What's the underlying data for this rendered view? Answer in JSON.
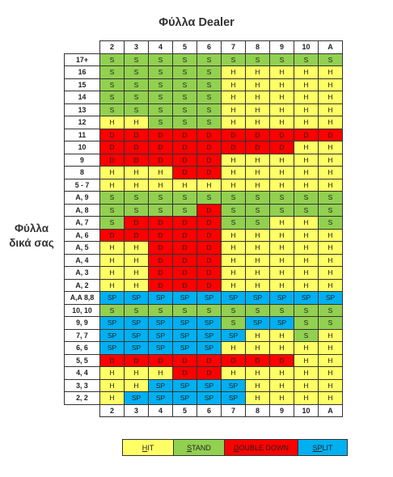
{
  "title": "Φύλλα Dealer",
  "side_label": [
    "Φύλλα",
    "δικά σας"
  ],
  "dealer_cards": [
    "2",
    "3",
    "4",
    "5",
    "6",
    "7",
    "8",
    "9",
    "10",
    "A"
  ],
  "colors": {
    "H": "#ffff66",
    "S": "#92d050",
    "D": "#ff0000",
    "SP": "#00b0f0"
  },
  "rows": [
    {
      "label": "17+",
      "cells": [
        "S",
        "S",
        "S",
        "S",
        "S",
        "S",
        "S",
        "S",
        "S",
        "S"
      ]
    },
    {
      "label": "16",
      "cells": [
        "S",
        "S",
        "S",
        "S",
        "S",
        "H",
        "H",
        "H",
        "H",
        "H"
      ]
    },
    {
      "label": "15",
      "cells": [
        "S",
        "S",
        "S",
        "S",
        "S",
        "H",
        "H",
        "H",
        "H",
        "H"
      ]
    },
    {
      "label": "14",
      "cells": [
        "S",
        "S",
        "S",
        "S",
        "S",
        "H",
        "H",
        "H",
        "H",
        "H"
      ]
    },
    {
      "label": "13",
      "cells": [
        "S",
        "S",
        "S",
        "S",
        "S",
        "H",
        "H",
        "H",
        "H",
        "H"
      ]
    },
    {
      "label": "12",
      "cells": [
        "H",
        "H",
        "S",
        "S",
        "S",
        "H",
        "H",
        "H",
        "H",
        "H"
      ]
    },
    {
      "label": "11",
      "cells": [
        "D",
        "D",
        "D",
        "D",
        "D",
        "D",
        "D",
        "D",
        "D",
        "D"
      ]
    },
    {
      "label": "10",
      "cells": [
        "D",
        "D",
        "D",
        "D",
        "D",
        "D",
        "D",
        "D",
        "H",
        "H"
      ]
    },
    {
      "label": "9",
      "cells": [
        "D",
        "D",
        "D",
        "D",
        "D",
        "H",
        "H",
        "H",
        "H",
        "H"
      ]
    },
    {
      "label": "8",
      "cells": [
        "H",
        "H",
        "H",
        "D",
        "D",
        "H",
        "H",
        "H",
        "H",
        "H"
      ]
    },
    {
      "label": "5 - 7",
      "cells": [
        "H",
        "H",
        "H",
        "H",
        "H",
        "H",
        "H",
        "H",
        "H",
        "H"
      ]
    },
    {
      "label": "A, 9",
      "cells": [
        "S",
        "S",
        "S",
        "S",
        "S",
        "S",
        "S",
        "S",
        "S",
        "S"
      ]
    },
    {
      "label": "A, 8",
      "cells": [
        "S",
        "S",
        "S",
        "S",
        "D",
        "S",
        "S",
        "S",
        "S",
        "S"
      ]
    },
    {
      "label": "A, 7",
      "cells": [
        "S",
        "D",
        "D",
        "D",
        "D",
        "S",
        "S",
        "H",
        "H",
        "S"
      ]
    },
    {
      "label": "A, 6",
      "cells": [
        "D",
        "D",
        "D",
        "D",
        "D",
        "H",
        "H",
        "H",
        "H",
        "H"
      ]
    },
    {
      "label": "A, 5",
      "cells": [
        "H",
        "H",
        "D",
        "D",
        "D",
        "H",
        "H",
        "H",
        "H",
        "H"
      ]
    },
    {
      "label": "A, 4",
      "cells": [
        "H",
        "H",
        "D",
        "D",
        "D",
        "H",
        "H",
        "H",
        "H",
        "H"
      ]
    },
    {
      "label": "A, 3",
      "cells": [
        "H",
        "H",
        "D",
        "D",
        "D",
        "H",
        "H",
        "H",
        "H",
        "H"
      ]
    },
    {
      "label": "A, 2",
      "cells": [
        "H",
        "H",
        "D",
        "D",
        "D",
        "H",
        "H",
        "H",
        "H",
        "H"
      ]
    },
    {
      "label": "A,A 8,8",
      "cells": [
        "SP",
        "SP",
        "SP",
        "SP",
        "SP",
        "SP",
        "SP",
        "SP",
        "SP",
        "SP"
      ]
    },
    {
      "label": "10, 10",
      "cells": [
        "S",
        "S",
        "S",
        "S",
        "S",
        "S",
        "S",
        "S",
        "S",
        "S"
      ]
    },
    {
      "label": "9, 9",
      "cells": [
        "SP",
        "SP",
        "SP",
        "SP",
        "SP",
        "S",
        "SP",
        "SP",
        "S",
        "S"
      ]
    },
    {
      "label": "7, 7",
      "cells": [
        "SP",
        "SP",
        "SP",
        "SP",
        "SP",
        "SP",
        "H",
        "H",
        "S",
        "H"
      ]
    },
    {
      "label": "6, 6",
      "cells": [
        "SP",
        "SP",
        "SP",
        "SP",
        "SP",
        "H",
        "H",
        "H",
        "H",
        "H"
      ]
    },
    {
      "label": "5, 5",
      "cells": [
        "D",
        "D",
        "D",
        "D",
        "D",
        "D",
        "D",
        "D",
        "H",
        "H"
      ]
    },
    {
      "label": "4, 4",
      "cells": [
        "H",
        "H",
        "H",
        "D",
        "D",
        "H",
        "H",
        "H",
        "H",
        "H"
      ]
    },
    {
      "label": "3, 3",
      "cells": [
        "H",
        "H",
        "SP",
        "SP",
        "SP",
        "SP",
        "H",
        "H",
        "H",
        "H"
      ]
    },
    {
      "label": "2, 2",
      "cells": [
        "H",
        "SP",
        "SP",
        "SP",
        "SP",
        "SP",
        "H",
        "H",
        "H",
        "H"
      ]
    }
  ],
  "legend": [
    {
      "key": "H",
      "first": "H",
      "rest": "IT"
    },
    {
      "key": "S",
      "first": "S",
      "rest": "TAND"
    },
    {
      "key": "D",
      "first": "D",
      "rest": "OUBLE DOWN"
    },
    {
      "key": "SP",
      "first": "SP",
      "rest": "LIT"
    }
  ]
}
